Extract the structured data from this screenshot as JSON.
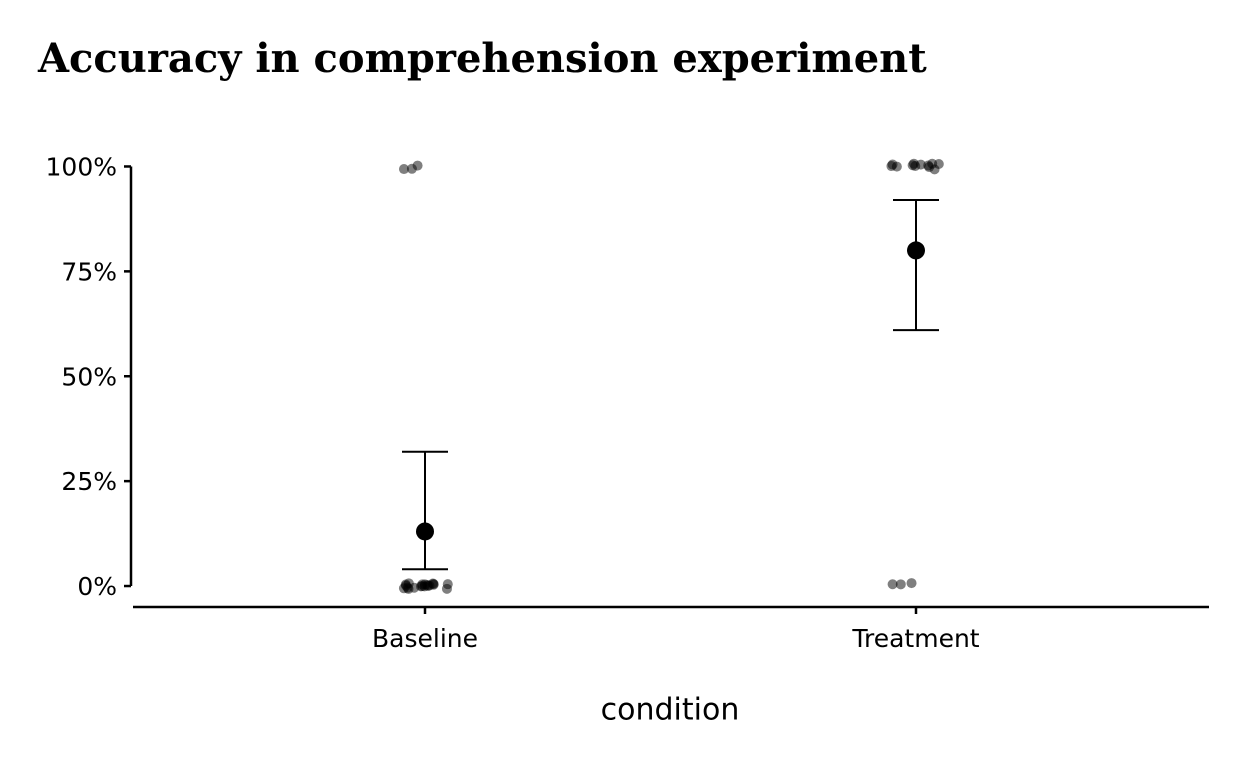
{
  "chart_data": {
    "type": "jitter-pointrange",
    "title": "Accuracy in comprehension experiment",
    "x_label": "condition",
    "ylim": [
      -5,
      105
    ],
    "yticks": [
      {
        "value": 0,
        "label": "0%"
      },
      {
        "value": 25,
        "label": "25%"
      },
      {
        "value": 50,
        "label": "50%"
      },
      {
        "value": 75,
        "label": "75%"
      },
      {
        "value": 100,
        "label": "100%"
      }
    ],
    "point_color": "#000000",
    "groups": [
      {
        "name": "Baseline",
        "values": [
          0,
          0,
          0,
          0,
          0,
          0,
          0,
          0,
          0,
          0,
          0,
          0,
          0,
          0,
          0,
          0,
          0,
          0,
          0,
          0,
          100,
          100,
          100
        ],
        "mean": 13,
        "ci_low": 4,
        "ci_high": 32
      },
      {
        "name": "Treatment",
        "values": [
          100,
          100,
          100,
          100,
          100,
          100,
          100,
          100,
          100,
          100,
          100,
          100,
          0,
          0,
          0
        ],
        "mean": 80,
        "ci_low": 61,
        "ci_high": 92
      }
    ]
  }
}
